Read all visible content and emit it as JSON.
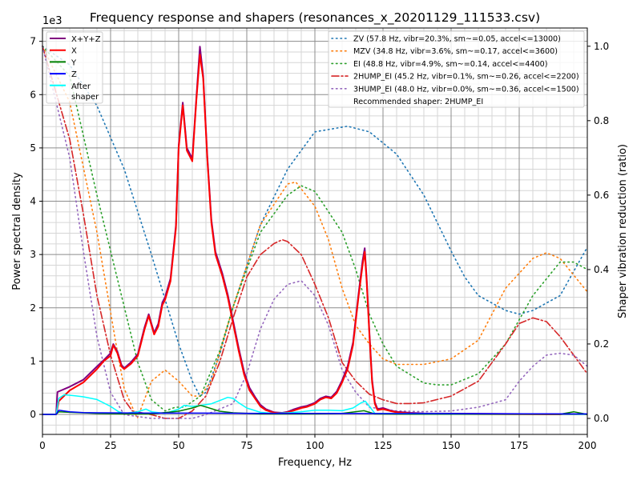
{
  "chart_data": {
    "type": "line",
    "title": "Frequency response and shapers (resonances_x_20201129_111533.csv)",
    "xlabel": "Frequency, Hz",
    "ylabel": "Power spectral density",
    "ylabel_right": "Shaper vibration reduction (ratio)",
    "y_offset_label": "1e3",
    "xlim": [
      0,
      200
    ],
    "ylim": [
      -375,
      7250
    ],
    "ylim_right": [
      -0.043,
      1.049
    ],
    "xticks": [
      0,
      25,
      50,
      75,
      100,
      125,
      150,
      175,
      200
    ],
    "yticks": [
      0,
      1,
      2,
      3,
      4,
      5,
      6,
      7
    ],
    "yticks_right": [
      "0.0",
      "0.2",
      "0.4",
      "0.6",
      "0.8",
      "1.0"
    ],
    "grid": true,
    "legend_left_placement": "top-left",
    "legend_right_placement": "top-right",
    "psd_series": [
      {
        "name": "X+Y+Z",
        "color": "#800080",
        "x": [
          0,
          5,
          5.5,
          10,
          15,
          20,
          22.5,
          25,
          26,
          27.5,
          29,
          30,
          32.5,
          35,
          37.5,
          39,
          41,
          42.5,
          44,
          45,
          47,
          49,
          50,
          51.5,
          53,
          55,
          56.5,
          57.8,
          59,
          60.5,
          62,
          63.5,
          66,
          68,
          70,
          72,
          74,
          76,
          78,
          80,
          82,
          85,
          88,
          90,
          92,
          95,
          97,
          100,
          102,
          104,
          106,
          108,
          110,
          112,
          114,
          116,
          117.5,
          118.3,
          119,
          120,
          121,
          122,
          123,
          125,
          128,
          130,
          135,
          140,
          200
        ],
        "y": [
          0,
          0,
          420,
          520,
          650,
          900,
          1020,
          1150,
          1320,
          1180,
          930,
          870,
          980,
          1130,
          1640,
          1880,
          1530,
          1700,
          2100,
          2200,
          2550,
          3550,
          5050,
          5850,
          5000,
          4800,
          5950,
          6900,
          6350,
          4850,
          3650,
          3050,
          2650,
          2250,
          1750,
          1250,
          800,
          500,
          330,
          180,
          100,
          40,
          30,
          50,
          90,
          140,
          160,
          220,
          300,
          340,
          320,
          430,
          640,
          900,
          1350,
          2250,
          2880,
          3120,
          2550,
          1550,
          650,
          230,
          100,
          120,
          70,
          50,
          30,
          20,
          0
        ]
      },
      {
        "name": "X",
        "color": "#ff0000",
        "x": [
          0,
          5,
          6,
          10,
          15,
          20,
          22.5,
          25,
          26,
          27.5,
          29,
          30,
          32.5,
          35,
          37.5,
          39,
          41,
          42.5,
          44,
          45,
          47,
          49,
          50,
          51.5,
          53,
          55,
          56.5,
          57.8,
          59,
          60.5,
          62,
          63.5,
          66,
          68,
          70,
          72,
          74,
          76,
          78,
          80,
          82,
          85,
          88,
          90,
          92,
          95,
          97,
          100,
          102,
          104,
          106,
          108,
          110,
          112,
          114,
          116,
          117.5,
          118.3,
          119,
          120,
          121,
          122,
          123,
          125,
          128,
          130,
          135,
          140,
          200
        ],
        "y": [
          0,
          0,
          250,
          450,
          600,
          850,
          1000,
          1100,
          1300,
          1150,
          900,
          850,
          950,
          1100,
          1600,
          1850,
          1500,
          1650,
          2050,
          2150,
          2500,
          3500,
          5000,
          5800,
          4950,
          4750,
          5900,
          6750,
          6300,
          4800,
          3600,
          3000,
          2600,
          2200,
          1700,
          1200,
          750,
          450,
          300,
          150,
          80,
          30,
          20,
          40,
          70,
          120,
          140,
          200,
          280,
          320,
          300,
          400,
          600,
          850,
          1300,
          2200,
          2800,
          3050,
          2500,
          1500,
          600,
          200,
          80,
          100,
          60,
          40,
          20,
          10,
          0
        ]
      },
      {
        "name": "Y",
        "color": "#008000",
        "x": [
          0,
          5,
          6,
          10,
          20,
          30,
          40,
          50,
          55,
          58,
          60,
          65,
          70,
          80,
          100,
          110,
          118,
          122,
          130,
          190,
          195,
          200
        ],
        "y": [
          0,
          0,
          50,
          40,
          20,
          10,
          10,
          60,
          120,
          170,
          140,
          60,
          30,
          10,
          10,
          20,
          70,
          10,
          5,
          5,
          50,
          0
        ]
      },
      {
        "name": "Z",
        "color": "#0000ff",
        "x": [
          0,
          5,
          6,
          10,
          15,
          20,
          40,
          60,
          80,
          100,
          200
        ],
        "y": [
          0,
          0,
          80,
          50,
          35,
          30,
          25,
          25,
          20,
          20,
          10
        ]
      },
      {
        "name": "After\nshaper",
        "color": "#00ffff",
        "x": [
          0,
          5,
          6,
          8,
          12,
          15,
          20,
          25,
          28,
          30,
          35,
          38,
          40,
          45,
          50,
          52,
          55,
          58,
          62,
          66,
          68,
          70,
          72,
          75,
          80,
          85,
          90,
          95,
          100,
          105,
          110,
          114,
          117,
          118.5,
          120,
          122,
          200
        ],
        "y": [
          0,
          0,
          300,
          370,
          350,
          330,
          280,
          150,
          50,
          20,
          50,
          100,
          50,
          20,
          100,
          170,
          150,
          170,
          200,
          280,
          320,
          300,
          220,
          120,
          40,
          20,
          30,
          50,
          80,
          80,
          70,
          120,
          220,
          250,
          150,
          20,
          0
        ]
      }
    ],
    "shaper_series": [
      {
        "name": "ZV (57.8 Hz, vibr=20.3%, sm~=0.05, accel<=13000)",
        "color": "#1f77b4",
        "style": "dotted",
        "x": [
          0,
          10,
          20,
          30,
          40,
          50,
          55,
          57.8,
          60,
          65,
          70,
          80,
          90,
          100,
          112,
          120,
          125,
          130,
          140,
          150,
          155,
          160,
          170,
          175,
          180,
          190,
          200
        ],
        "y": [
          1.0,
          0.95,
          0.84,
          0.67,
          0.44,
          0.2,
          0.1,
          0.06,
          0.07,
          0.17,
          0.3,
          0.52,
          0.67,
          0.77,
          0.785,
          0.77,
          0.74,
          0.71,
          0.6,
          0.45,
          0.38,
          0.33,
          0.29,
          0.28,
          0.29,
          0.33,
          0.46
        ]
      },
      {
        "name": "MZV (34.8 Hz, vibr=3.6%, sm~=0.17, accel<=3600)",
        "color": "#ff7f0e",
        "style": "dotted",
        "x": [
          0,
          10,
          20,
          27,
          30,
          34.8,
          40,
          45,
          50,
          55,
          58,
          62,
          70,
          80,
          90,
          93,
          100,
          105,
          110,
          115,
          120,
          125,
          130,
          140,
          150,
          160,
          170,
          180,
          185,
          190,
          200
        ],
        "y": [
          1.0,
          0.85,
          0.5,
          0.2,
          0.08,
          0.0,
          0.1,
          0.13,
          0.1,
          0.06,
          0.06,
          0.1,
          0.3,
          0.52,
          0.63,
          0.635,
          0.57,
          0.48,
          0.35,
          0.25,
          0.2,
          0.16,
          0.145,
          0.145,
          0.16,
          0.21,
          0.35,
          0.43,
          0.445,
          0.43,
          0.34
        ]
      },
      {
        "name": "EI (48.8 Hz, vibr=4.9%, sm~=0.14, accel<=4400)",
        "color": "#2ca02c",
        "style": "dotted",
        "x": [
          0,
          10,
          20,
          30,
          35,
          40,
          45,
          48.8,
          52,
          58,
          65,
          70,
          80,
          90,
          95,
          100,
          110,
          115,
          120,
          125,
          130,
          140,
          145,
          150,
          160,
          170,
          180,
          190,
          195,
          200
        ],
        "y": [
          1.0,
          0.92,
          0.6,
          0.3,
          0.15,
          0.05,
          0.02,
          0.03,
          0.03,
          0.06,
          0.18,
          0.3,
          0.5,
          0.6,
          0.625,
          0.61,
          0.5,
          0.4,
          0.28,
          0.2,
          0.14,
          0.095,
          0.09,
          0.09,
          0.12,
          0.2,
          0.33,
          0.42,
          0.42,
          0.4
        ]
      },
      {
        "name": "2HUMP_EI (45.2 Hz, vibr=0.1%, sm~=0.26, accel<=2200)",
        "color": "#d62728",
        "style": "dashdot",
        "x": [
          0,
          10,
          15,
          20,
          25,
          30,
          33,
          40,
          45,
          50,
          55,
          60,
          65,
          70,
          75,
          80,
          85,
          88,
          90,
          95,
          100,
          105,
          110,
          115,
          120,
          125,
          130,
          135,
          140,
          150,
          160,
          170,
          175,
          180,
          185,
          190,
          195,
          200
        ],
        "y": [
          1.0,
          0.75,
          0.55,
          0.33,
          0.17,
          0.05,
          0.02,
          0.01,
          0.0,
          0.0,
          0.02,
          0.06,
          0.15,
          0.27,
          0.38,
          0.44,
          0.47,
          0.48,
          0.475,
          0.44,
          0.36,
          0.27,
          0.15,
          0.1,
          0.065,
          0.05,
          0.04,
          0.04,
          0.042,
          0.06,
          0.1,
          0.2,
          0.255,
          0.27,
          0.26,
          0.22,
          0.17,
          0.12
        ]
      },
      {
        "name": "3HUMP_EI (48.0 Hz, vibr=0.0%, sm~=0.36, accel<=1500)",
        "color": "#9467bd",
        "style": "dotted",
        "x": [
          0,
          10,
          15,
          20,
          25,
          30,
          40,
          48,
          55,
          60,
          70,
          75,
          80,
          85,
          90,
          95,
          100,
          105,
          110,
          115,
          120,
          125,
          130,
          140,
          150,
          160,
          165,
          170,
          175,
          180,
          185,
          190,
          195,
          200
        ],
        "y": [
          1.0,
          0.7,
          0.45,
          0.22,
          0.07,
          0.01,
          0.0,
          0.0,
          0.0,
          0.01,
          0.04,
          0.12,
          0.24,
          0.32,
          0.36,
          0.37,
          0.33,
          0.25,
          0.13,
          0.07,
          0.03,
          0.025,
          0.02,
          0.018,
          0.02,
          0.03,
          0.04,
          0.05,
          0.1,
          0.14,
          0.17,
          0.175,
          0.17,
          0.14
        ]
      }
    ],
    "recommendation": "Recommended shaper: 2HUMP_EI"
  }
}
